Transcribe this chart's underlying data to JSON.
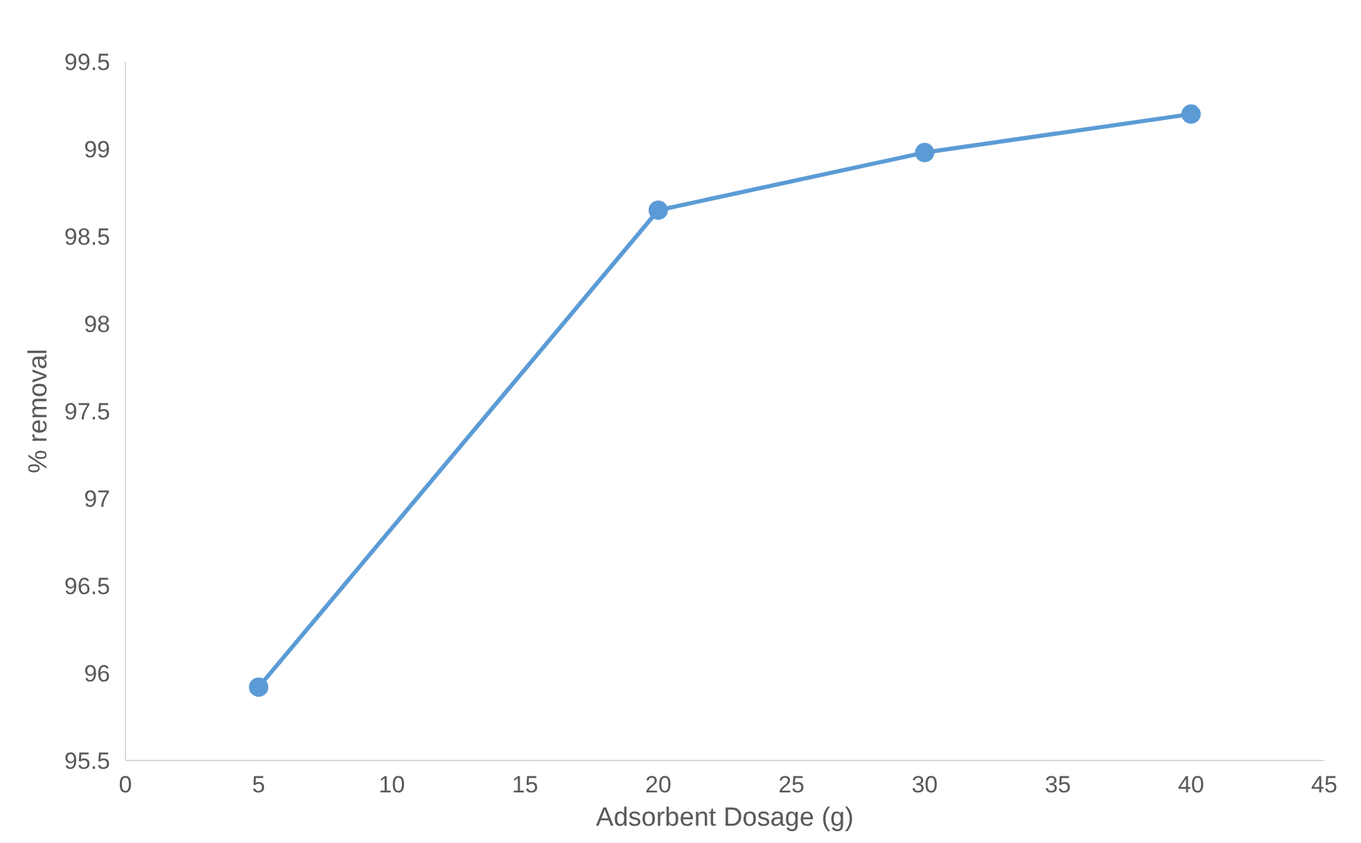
{
  "chart_data": {
    "type": "line",
    "xlabel": "Adsorbent Dosage (g)",
    "ylabel": "% removal",
    "x": [
      5,
      20,
      30,
      40
    ],
    "series": [
      {
        "color": "#5b9bd5",
        "values": [
          95.92,
          98.65,
          98.98,
          99.2
        ]
      }
    ],
    "xlim": [
      0,
      45
    ],
    "xticks": [
      0,
      5,
      10,
      15,
      20,
      25,
      30,
      35,
      40,
      45
    ],
    "ylim": [
      95.5,
      99.5
    ],
    "yticks": [
      95.5,
      96,
      96.5,
      97,
      97.5,
      98,
      98.5,
      99,
      99.5
    ],
    "grid": false,
    "marker": "circle",
    "line_style": "solid"
  }
}
